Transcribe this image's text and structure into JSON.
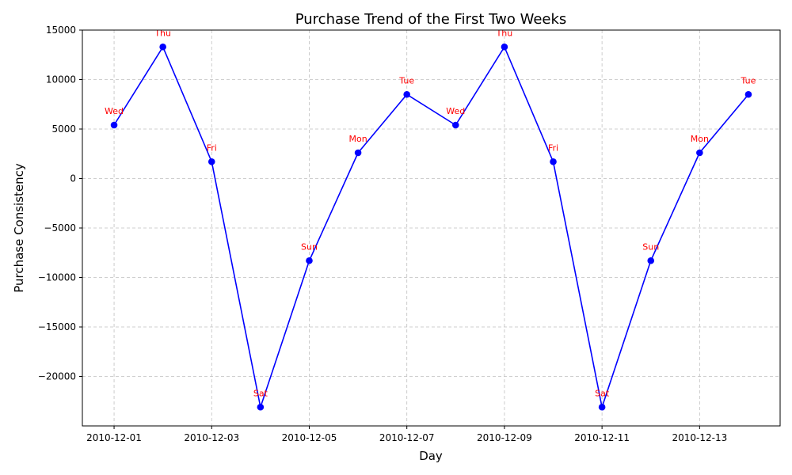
{
  "chart_data": {
    "type": "line",
    "title": "Purchase Trend of the First Two Weeks",
    "xlabel": "Day",
    "ylabel": "Purchase Consistency",
    "grid": true,
    "ylim": [
      -25000,
      15000
    ],
    "yticks": [
      15000,
      10000,
      5000,
      0,
      -5000,
      -10000,
      -15000,
      -20000
    ],
    "xtick_labels": [
      "2010-12-01",
      "2010-12-03",
      "2010-12-05",
      "2010-12-07",
      "2010-12-09",
      "2010-12-11",
      "2010-12-13"
    ],
    "x": [
      "2010-12-01",
      "2010-12-02",
      "2010-12-03",
      "2010-12-04",
      "2010-12-05",
      "2010-12-06",
      "2010-12-07",
      "2010-12-08",
      "2010-12-09",
      "2010-12-10",
      "2010-12-11",
      "2010-12-12",
      "2010-12-13",
      "2010-12-14"
    ],
    "series": [
      {
        "values": [
          5400,
          13300,
          1700,
          -23100,
          -8300,
          2600,
          8500,
          5400,
          13300,
          1700,
          -23100,
          -8300,
          2600,
          8500
        ],
        "labels": [
          "Wed",
          "Thu",
          "Fri",
          "Sat",
          "Sun",
          "Mon",
          "Tue",
          "Wed",
          "Thu",
          "Fri",
          "Sat",
          "Sun",
          "Mon",
          "Tue"
        ]
      }
    ],
    "colors": {
      "line": "#0000ff",
      "marker": "#0000ff",
      "label": "#ff0000",
      "grid": "#c0c0c0"
    }
  }
}
